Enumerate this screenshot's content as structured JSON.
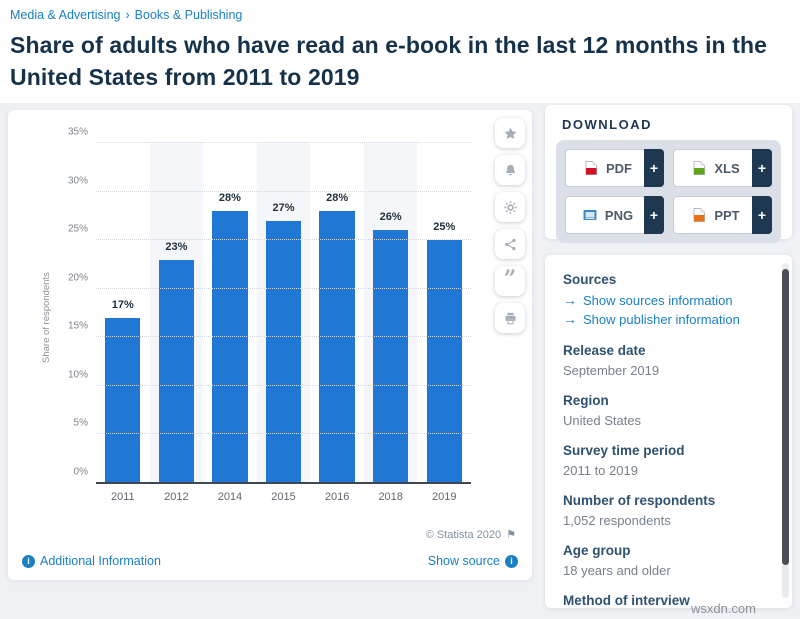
{
  "breadcrumb": {
    "items": [
      "Media & Advertising",
      "Books & Publishing"
    ],
    "separator": "›"
  },
  "page_title": "Share of adults who have read an e-book in the last 12 months in the United States from 2011 to 2019",
  "chart_data": {
    "type": "bar",
    "categories": [
      "2011",
      "2012",
      "2014",
      "2015",
      "2016",
      "2018",
      "2019"
    ],
    "values": [
      17,
      23,
      28,
      27,
      28,
      26,
      25
    ],
    "value_labels": [
      "17%",
      "23%",
      "28%",
      "27%",
      "28%",
      "26%",
      "25%"
    ],
    "title": "Share of adults who have read an e-book in the last 12 months in the United States from 2011 to 2019",
    "xlabel": "",
    "ylabel": "Share of respondents",
    "ylim": [
      0,
      35
    ],
    "ytick_step": 5,
    "ytick_suffix": "%",
    "grid": true,
    "legend": false,
    "bar_color": "#2077d4",
    "alt_band_color": "#f5f6f9"
  },
  "toolbar": {
    "buttons": [
      {
        "icon": "star"
      },
      {
        "icon": "bell"
      },
      {
        "icon": "gear"
      },
      {
        "icon": "share"
      },
      {
        "icon": "quote"
      },
      {
        "icon": "printer"
      }
    ]
  },
  "chart_footer": {
    "credit": "© Statista 2020",
    "additional_info": "Additional Information",
    "show_source": "Show source"
  },
  "download": {
    "header": "DOWNLOAD",
    "plus": "+",
    "buttons": [
      {
        "label": "PDF",
        "icon": "doc",
        "color": "#cf1124"
      },
      {
        "label": "XLS",
        "icon": "doc",
        "color": "#5fa321"
      },
      {
        "label": "PNG",
        "icon": "image",
        "color": "#3b88c3"
      },
      {
        "label": "PPT",
        "icon": "doc",
        "color": "#e8721c"
      }
    ]
  },
  "details": {
    "sources_header": "Sources",
    "links": [
      "Show sources information",
      "Show publisher information"
    ],
    "sections": [
      {
        "label": "Release date",
        "value": "September 2019"
      },
      {
        "label": "Region",
        "value": "United States"
      },
      {
        "label": "Survey time period",
        "value": "2011 to 2019"
      },
      {
        "label": "Number of respondents",
        "value": "1,052 respondents"
      },
      {
        "label": "Age group",
        "value": "18 years and older"
      },
      {
        "label": "Method of interview",
        "value": ""
      }
    ]
  },
  "icons": {
    "flag": "⚑",
    "info": "i",
    "arrow": "→"
  },
  "watermark": "wsxdn.com"
}
